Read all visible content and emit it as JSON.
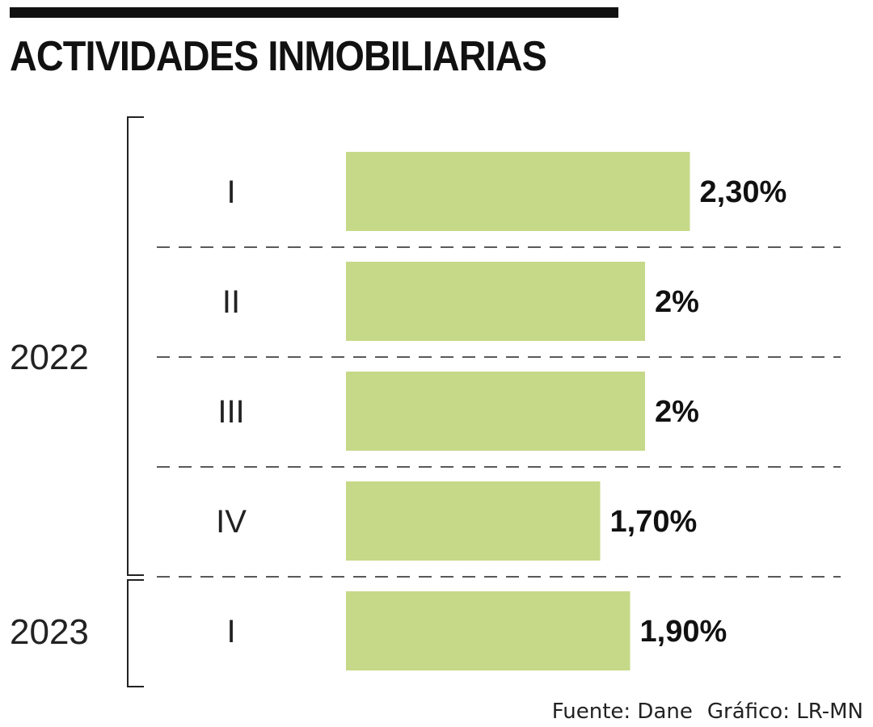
{
  "title": "ACTIVIDADES INMOBILIARIAS",
  "source": "Fuente: Dane",
  "credit": "Gráfico: LR-MN",
  "colors": {
    "bar": "#c6d988",
    "text": "#111111",
    "divider": "#222222"
  },
  "chart_data": {
    "type": "bar",
    "orientation": "horizontal",
    "title": "ACTIVIDADES INMOBILIARIAS",
    "groups": [
      {
        "label": "2022",
        "categories": [
          "I",
          "II",
          "III",
          "IV"
        ]
      },
      {
        "label": "2023",
        "categories": [
          "I"
        ]
      }
    ],
    "categories": [
      "I",
      "II",
      "III",
      "IV",
      "I"
    ],
    "values": [
      2.3,
      2.0,
      2.0,
      1.7,
      1.9
    ],
    "value_labels": [
      "2,30%",
      "2%",
      "2%",
      "1,70%",
      "1,90%"
    ],
    "unit": "%",
    "grid": false,
    "legend": "none"
  }
}
